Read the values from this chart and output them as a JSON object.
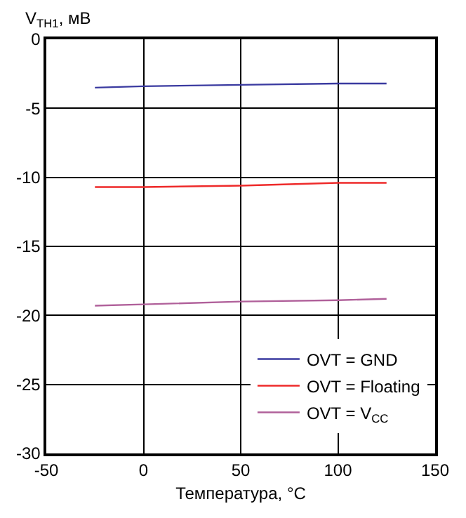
{
  "chart_data": {
    "type": "line",
    "ylabel": "V$_{TH1}$, мВ",
    "xlabel": "Температура, °C",
    "x": [
      -25,
      0,
      50,
      100,
      125
    ],
    "series": [
      {
        "name": "OVT = GND",
        "color": "#3a3aa0",
        "values": [
          -3.5,
          -3.4,
          -3.3,
          -3.2,
          -3.2
        ]
      },
      {
        "name": "OVT = Floating",
        "color": "#ee2a2a",
        "values": [
          -10.7,
          -10.7,
          -10.6,
          -10.4,
          -10.4
        ]
      },
      {
        "name": "OVT = V$_{CC}$",
        "color": "#b0609a",
        "values": [
          -19.3,
          -19.2,
          -19.0,
          -18.9,
          -18.8
        ]
      }
    ],
    "xlim": [
      -50,
      150
    ],
    "xticks": [
      -50,
      0,
      50,
      100,
      150
    ],
    "ylim": [
      -30,
      0
    ],
    "yticks": [
      0,
      -5,
      -10,
      -15,
      -20,
      -25,
      -30
    ],
    "grid": true,
    "legend": "bottom right",
    "marker": "none",
    "line_style": "solid"
  }
}
